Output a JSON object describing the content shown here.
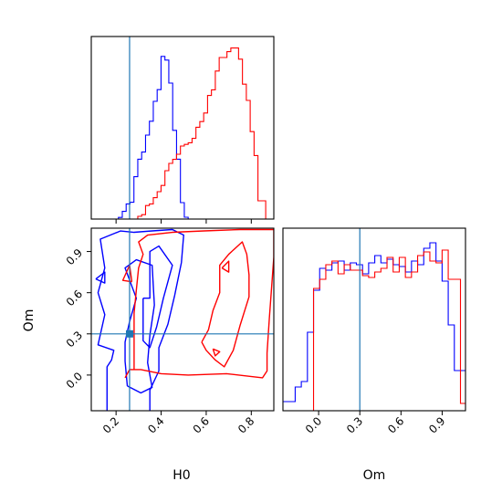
{
  "chart_data": [
    {
      "type": "histogram",
      "panel": "H0 marginal",
      "x_range": [
        0.09,
        0.9
      ],
      "y_range": [
        0,
        1.0
      ],
      "grid": false,
      "xticks": [
        "0.2",
        "0.4",
        "0.6",
        "0.8"
      ],
      "xtick_labels_visible": false,
      "truth_line_x": 0.26,
      "series": [
        {
          "color": "#0000ff",
          "bin_width": 0.0172,
          "x_start": 0.09,
          "values": [
            0,
            0,
            0,
            0,
            0,
            0,
            0,
            0.009,
            0.042,
            0.083,
            0.092,
            0.232,
            0.328,
            0.367,
            0.46,
            0.536,
            0.645,
            0.709,
            0.891,
            0.871,
            0.745,
            0.486,
            0.328,
            0.09,
            0.01,
            0,
            0,
            0,
            0,
            0,
            0,
            0,
            0,
            0,
            0,
            0,
            0,
            0,
            0,
            0,
            0,
            0,
            0,
            0,
            0,
            0,
            0,
            0
          ]
        },
        {
          "color": "#ff0000",
          "bin_width": 0.0172,
          "x_start": 0.09,
          "values": [
            0,
            0,
            0,
            0,
            0,
            0,
            0,
            0,
            0,
            0,
            0,
            0,
            0.015,
            0.024,
            0.074,
            0.083,
            0.117,
            0.15,
            0.184,
            0.265,
            0.305,
            0.327,
            0.355,
            0.4,
            0.409,
            0.418,
            0.442,
            0.503,
            0.534,
            0.581,
            0.677,
            0.708,
            0.811,
            0.885,
            0.885,
            0.917,
            0.937,
            0.937,
            0.876,
            0.739,
            0.65,
            0.479,
            0.348,
            0.1,
            0.1,
            0,
            0,
            0
          ]
        }
      ]
    },
    {
      "type": "contour",
      "panel": "H0 vs Om joint",
      "xlabel": "H0",
      "ylabel": "Om",
      "x_range": [
        0.09,
        0.9
      ],
      "y_range": [
        -0.26,
        1.07
      ],
      "grid": false,
      "xticks": [
        "0.2",
        "0.4",
        "0.6",
        "0.8"
      ],
      "yticks": [
        "0.0",
        "0.3",
        "0.6",
        "0.9"
      ],
      "truth_point": {
        "x": 0.26,
        "y": 0.3
      },
      "series": [
        {
          "color": "#0000ff",
          "contours": [
            [
              [
                0.16,
                -0.26
              ],
              [
                0.16,
                0.06
              ],
              [
                0.18,
                0.11
              ],
              [
                0.19,
                0.18
              ],
              [
                0.12,
                0.22
              ],
              [
                0.15,
                0.44
              ],
              [
                0.12,
                0.6
              ],
              [
                0.15,
                0.78
              ],
              [
                0.13,
                0.99
              ],
              [
                0.22,
                1.05
              ],
              [
                0.28,
                1.04
              ],
              [
                0.36,
                1.05
              ],
              [
                0.45,
                1.06
              ],
              [
                0.5,
                1.02
              ],
              [
                0.49,
                0.82
              ],
              [
                0.46,
                0.58
              ],
              [
                0.43,
                0.37
              ],
              [
                0.39,
                0.2
              ],
              [
                0.39,
                0.03
              ],
              [
                0.35,
                -0.11
              ],
              [
                0.35,
                -0.26
              ]
            ],
            [
              [
                0.25,
                -0.08
              ],
              [
                0.31,
                -0.13
              ],
              [
                0.36,
                -0.09
              ],
              [
                0.34,
                0.09
              ],
              [
                0.35,
                0.29
              ],
              [
                0.37,
                0.51
              ],
              [
                0.36,
                0.8
              ],
              [
                0.29,
                0.84
              ],
              [
                0.24,
                0.78
              ],
              [
                0.29,
                0.56
              ],
              [
                0.26,
                0.39
              ],
              [
                0.24,
                0.24
              ],
              [
                0.24,
                0.1
              ],
              [
                0.25,
                -0.08
              ]
            ],
            [
              [
                0.32,
                0.56
              ],
              [
                0.35,
                0.56
              ],
              [
                0.35,
                0.9
              ],
              [
                0.39,
                0.94
              ],
              [
                0.45,
                0.8
              ],
              [
                0.41,
                0.56
              ],
              [
                0.38,
                0.35
              ],
              [
                0.35,
                0.2
              ],
              [
                0.32,
                0.25
              ],
              [
                0.32,
                0.56
              ]
            ],
            [
              [
                0.11,
                0.7
              ],
              [
                0.15,
                0.75
              ],
              [
                0.15,
                0.67
              ],
              [
                0.11,
                0.7
              ]
            ]
          ]
        },
        {
          "color": "#ff0000",
          "contours": [
            [
              [
                0.24,
                -0.02
              ],
              [
                0.26,
                0.04
              ],
              [
                0.28,
                0.04
              ],
              [
                0.28,
                0.45
              ],
              [
                0.29,
                0.62
              ],
              [
                0.3,
                0.78
              ],
              [
                0.32,
                0.88
              ],
              [
                0.3,
                0.97
              ],
              [
                0.34,
                1.02
              ],
              [
                0.45,
                1.04
              ],
              [
                0.59,
                1.05
              ],
              [
                0.75,
                1.06
              ],
              [
                0.9,
                1.06
              ],
              [
                0.9,
                0.86
              ],
              [
                0.88,
                0.41
              ],
              [
                0.87,
                0.16
              ],
              [
                0.87,
                0.03
              ],
              [
                0.85,
                -0.02
              ],
              [
                0.69,
                0.01
              ],
              [
                0.52,
                0.0
              ],
              [
                0.4,
                0.01
              ],
              [
                0.31,
                0.04
              ],
              [
                0.28,
                0.04
              ]
            ],
            [
              [
                0.27,
                0.68
              ],
              [
                0.23,
                0.69
              ],
              [
                0.26,
                0.8
              ],
              [
                0.27,
                0.68
              ]
            ],
            [
              [
                0.58,
                0.24
              ],
              [
                0.61,
                0.33
              ],
              [
                0.63,
                0.47
              ],
              [
                0.66,
                0.6
              ],
              [
                0.66,
                0.8
              ],
              [
                0.7,
                0.88
              ],
              [
                0.76,
                0.97
              ],
              [
                0.78,
                0.88
              ],
              [
                0.79,
                0.73
              ],
              [
                0.79,
                0.57
              ],
              [
                0.75,
                0.36
              ],
              [
                0.72,
                0.18
              ],
              [
                0.68,
                0.06
              ],
              [
                0.64,
                0.11
              ],
              [
                0.6,
                0.18
              ],
              [
                0.58,
                0.24
              ]
            ],
            [
              [
                0.67,
                0.78
              ],
              [
                0.7,
                0.83
              ],
              [
                0.7,
                0.75
              ],
              [
                0.67,
                0.78
              ]
            ],
            [
              [
                0.63,
                0.19
              ],
              [
                0.66,
                0.17
              ],
              [
                0.64,
                0.14
              ],
              [
                0.63,
                0.19
              ]
            ]
          ]
        }
      ]
    },
    {
      "type": "histogram",
      "panel": "Om marginal",
      "xlabel": "Om",
      "x_range": [
        -0.26,
        1.07
      ],
      "y_range": [
        0,
        1.0
      ],
      "grid": false,
      "xticks": [
        "0.0",
        "0.3",
        "0.6",
        "0.9"
      ],
      "truth_line_x": 0.3,
      "series": [
        {
          "color": "#0000ff",
          "bin_width": 0.0446,
          "x_start": -0.26,
          "values": [
            0.05,
            0.05,
            0.13,
            0.16,
            0.43,
            0.66,
            0.78,
            0.77,
            0.81,
            0.82,
            0.77,
            0.81,
            0.8,
            0.75,
            0.81,
            0.85,
            0.81,
            0.83,
            0.8,
            0.79,
            0.76,
            0.82,
            0.8,
            0.89,
            0.92,
            0.82,
            0.71,
            0.47,
            0.22,
            0.22,
            0.04
          ]
        },
        {
          "color": "#ff0000",
          "bin_width": 0.0446,
          "x_start": -0.26,
          "values": [
            0,
            0,
            0,
            0,
            0,
            0.67,
            0.72,
            0.8,
            0.82,
            0.75,
            0.8,
            0.77,
            0.77,
            0.74,
            0.73,
            0.76,
            0.78,
            0.84,
            0.76,
            0.84,
            0.73,
            0.76,
            0.85,
            0.87,
            0.82,
            0.81,
            0.88,
            0.72,
            0.72,
            0.04,
            0
          ]
        }
      ]
    }
  ]
}
